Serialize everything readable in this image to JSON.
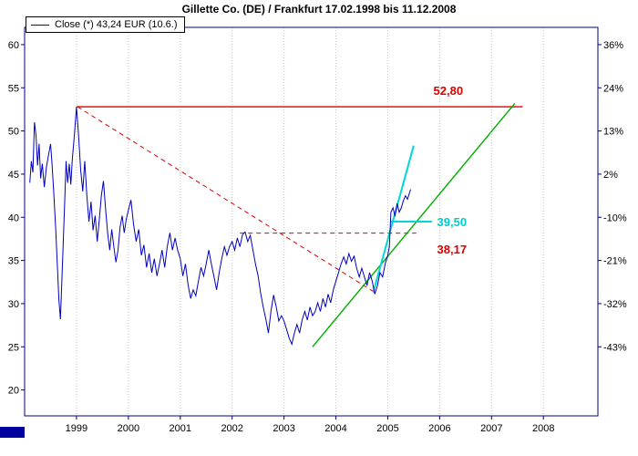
{
  "window": {
    "title": "Gillette Co. (DE) / Frankfurt 17.02.1998 bis 11.12.2008"
  },
  "legend": {
    "label": "Close (*) 43,24 EUR (10.6.)",
    "line_color": "#0000bf"
  },
  "chart_data": {
    "type": "line",
    "title": "Gillette Co. (DE) / Frankfurt 17.02.1998 bis 11.12.2008",
    "colors": {
      "frame": "#000080",
      "grid": "#c4c4c4",
      "price": "#0000bf",
      "red": "#dd0000",
      "green": "#00b000",
      "cyan": "#00d8d8"
    },
    "x_axis": {
      "range": [
        1998.0,
        2009.05
      ],
      "ticks": [
        {
          "label": "1999",
          "value": 1999
        },
        {
          "label": "2000",
          "value": 2000
        },
        {
          "label": "2001",
          "value": 2001
        },
        {
          "label": "2002",
          "value": 2002
        },
        {
          "label": "2003",
          "value": 2003
        },
        {
          "label": "2004",
          "value": 2004
        },
        {
          "label": "2005",
          "value": 2005
        },
        {
          "label": "2006",
          "value": 2006
        },
        {
          "label": "2007",
          "value": 2007
        },
        {
          "label": "2008",
          "value": 2008
        }
      ]
    },
    "y_axis_left": {
      "unit": "EUR",
      "range": [
        17,
        62
      ],
      "ticks": [
        {
          "label": "60",
          "value": 60
        },
        {
          "label": "55",
          "value": 55
        },
        {
          "label": "50",
          "value": 50
        },
        {
          "label": "45",
          "value": 45
        },
        {
          "label": "40",
          "value": 40
        },
        {
          "label": "35",
          "value": 35
        },
        {
          "label": "30",
          "value": 30
        },
        {
          "label": "25",
          "value": 25
        },
        {
          "label": "20",
          "value": 20
        }
      ]
    },
    "y_axis_right": {
      "unit": "%",
      "ticks": [
        {
          "label": "36%",
          "value": 60
        },
        {
          "label": "24%",
          "value": 55
        },
        {
          "label": "13%",
          "value": 50
        },
        {
          "label": "2%",
          "value": 45
        },
        {
          "label": "-10%",
          "value": 40
        },
        {
          "label": "-21%",
          "value": 35
        },
        {
          "label": "-32%",
          "value": 30
        },
        {
          "label": "-43%",
          "value": 25
        }
      ]
    },
    "series": [
      {
        "name": "Close",
        "color": "#0000bf",
        "points": [
          [
            1998.1,
            44.0
          ],
          [
            1998.13,
            46.5
          ],
          [
            1998.16,
            45.2
          ],
          [
            1998.19,
            51.0
          ],
          [
            1998.22,
            49.5
          ],
          [
            1998.25,
            46.0
          ],
          [
            1998.28,
            48.5
          ],
          [
            1998.31,
            44.5
          ],
          [
            1998.34,
            46.2
          ],
          [
            1998.38,
            43.5
          ],
          [
            1998.42,
            45.8
          ],
          [
            1998.46,
            47.2
          ],
          [
            1998.5,
            48.5
          ],
          [
            1998.53,
            46.0
          ],
          [
            1998.56,
            43.0
          ],
          [
            1998.6,
            38.5
          ],
          [
            1998.63,
            34.5
          ],
          [
            1998.66,
            30.5
          ],
          [
            1998.69,
            28.2
          ],
          [
            1998.72,
            33.0
          ],
          [
            1998.75,
            38.0
          ],
          [
            1998.78,
            43.0
          ],
          [
            1998.8,
            46.5
          ],
          [
            1998.83,
            44.0
          ],
          [
            1998.86,
            46.2
          ],
          [
            1998.89,
            43.8
          ],
          [
            1998.92,
            46.8
          ],
          [
            1998.96,
            49.5
          ],
          [
            1999.0,
            52.8
          ],
          [
            1999.04,
            49.5
          ],
          [
            1999.08,
            45.5
          ],
          [
            1999.12,
            43.0
          ],
          [
            1999.16,
            46.5
          ],
          [
            1999.2,
            42.5
          ],
          [
            1999.24,
            39.5
          ],
          [
            1999.28,
            41.8
          ],
          [
            1999.32,
            38.5
          ],
          [
            1999.36,
            40.2
          ],
          [
            1999.4,
            37.2
          ],
          [
            1999.44,
            39.8
          ],
          [
            1999.48,
            42.5
          ],
          [
            1999.52,
            44.2
          ],
          [
            1999.56,
            41.0
          ],
          [
            1999.6,
            38.2
          ],
          [
            1999.64,
            36.2
          ],
          [
            1999.68,
            38.6
          ],
          [
            1999.72,
            36.6
          ],
          [
            1999.76,
            34.8
          ],
          [
            1999.8,
            36.2
          ],
          [
            1999.84,
            38.8
          ],
          [
            1999.88,
            40.2
          ],
          [
            1999.92,
            38.2
          ],
          [
            1999.96,
            39.8
          ],
          [
            2000.0,
            40.8
          ],
          [
            2000.05,
            42.0
          ],
          [
            2000.1,
            39.2
          ],
          [
            2000.15,
            37.2
          ],
          [
            2000.2,
            38.6
          ],
          [
            2000.25,
            35.6
          ],
          [
            2000.3,
            36.8
          ],
          [
            2000.35,
            34.2
          ],
          [
            2000.4,
            35.8
          ],
          [
            2000.45,
            33.6
          ],
          [
            2000.5,
            35.2
          ],
          [
            2000.55,
            33.2
          ],
          [
            2000.6,
            34.6
          ],
          [
            2000.65,
            36.2
          ],
          [
            2000.7,
            34.2
          ],
          [
            2000.75,
            36.6
          ],
          [
            2000.8,
            38.2
          ],
          [
            2000.85,
            36.2
          ],
          [
            2000.9,
            37.6
          ],
          [
            2000.95,
            36.2
          ],
          [
            2001.0,
            35.2
          ],
          [
            2001.05,
            33.2
          ],
          [
            2001.1,
            34.6
          ],
          [
            2001.15,
            32.2
          ],
          [
            2001.2,
            30.6
          ],
          [
            2001.25,
            31.6
          ],
          [
            2001.3,
            30.9
          ],
          [
            2001.35,
            32.6
          ],
          [
            2001.4,
            34.2
          ],
          [
            2001.45,
            33.2
          ],
          [
            2001.5,
            34.6
          ],
          [
            2001.55,
            36.2
          ],
          [
            2001.6,
            34.6
          ],
          [
            2001.65,
            33.1
          ],
          [
            2001.7,
            31.6
          ],
          [
            2001.75,
            33.6
          ],
          [
            2001.8,
            35.2
          ],
          [
            2001.85,
            36.6
          ],
          [
            2001.9,
            35.6
          ],
          [
            2001.95,
            36.6
          ],
          [
            2002.0,
            37.2
          ],
          [
            2002.05,
            36.2
          ],
          [
            2002.1,
            37.6
          ],
          [
            2002.15,
            36.6
          ],
          [
            2002.2,
            38.0
          ],
          [
            2002.25,
            38.3
          ],
          [
            2002.3,
            37.2
          ],
          [
            2002.35,
            37.9
          ],
          [
            2002.4,
            36.2
          ],
          [
            2002.45,
            34.6
          ],
          [
            2002.5,
            33.2
          ],
          [
            2002.55,
            31.2
          ],
          [
            2002.6,
            29.6
          ],
          [
            2002.65,
            28.2
          ],
          [
            2002.7,
            26.6
          ],
          [
            2002.75,
            29.2
          ],
          [
            2002.8,
            31.0
          ],
          [
            2002.85,
            29.6
          ],
          [
            2002.9,
            28.0
          ],
          [
            2002.95,
            28.6
          ],
          [
            2003.0,
            28.0
          ],
          [
            2003.05,
            27.0
          ],
          [
            2003.1,
            26.0
          ],
          [
            2003.15,
            25.3
          ],
          [
            2003.2,
            26.6
          ],
          [
            2003.25,
            27.6
          ],
          [
            2003.3,
            26.6
          ],
          [
            2003.35,
            28.1
          ],
          [
            2003.4,
            29.1
          ],
          [
            2003.45,
            28.1
          ],
          [
            2003.5,
            29.6
          ],
          [
            2003.55,
            28.6
          ],
          [
            2003.6,
            29.1
          ],
          [
            2003.65,
            30.1
          ],
          [
            2003.7,
            29.1
          ],
          [
            2003.75,
            30.6
          ],
          [
            2003.8,
            29.6
          ],
          [
            2003.85,
            31.1
          ],
          [
            2003.9,
            30.1
          ],
          [
            2003.95,
            31.6
          ],
          [
            2004.0,
            32.6
          ],
          [
            2004.05,
            33.6
          ],
          [
            2004.1,
            34.6
          ],
          [
            2004.15,
            35.4
          ],
          [
            2004.2,
            34.6
          ],
          [
            2004.25,
            35.8
          ],
          [
            2004.3,
            34.9
          ],
          [
            2004.35,
            35.5
          ],
          [
            2004.4,
            34.1
          ],
          [
            2004.45,
            33.1
          ],
          [
            2004.5,
            34.1
          ],
          [
            2004.55,
            33.1
          ],
          [
            2004.6,
            32.1
          ],
          [
            2004.65,
            33.6
          ],
          [
            2004.7,
            32.6
          ],
          [
            2004.75,
            31.1
          ],
          [
            2004.8,
            32.1
          ],
          [
            2004.85,
            33.6
          ],
          [
            2004.9,
            33.1
          ],
          [
            2004.95,
            34.6
          ],
          [
            2005.0,
            35.6
          ],
          [
            2005.03,
            36.6
          ],
          [
            2005.06,
            40.6
          ],
          [
            2005.1,
            41.1
          ],
          [
            2005.14,
            40.1
          ],
          [
            2005.18,
            41.6
          ],
          [
            2005.22,
            40.6
          ],
          [
            2005.26,
            41.1
          ],
          [
            2005.3,
            41.9
          ],
          [
            2005.34,
            42.5
          ],
          [
            2005.38,
            42.1
          ],
          [
            2005.44,
            43.24
          ]
        ]
      }
    ],
    "overlays": [
      {
        "name": "resistance-line-52-80",
        "color": "#dd0000",
        "dash": null,
        "width": 1.4,
        "points": [
          [
            1999.0,
            52.8
          ],
          [
            2007.6,
            52.8
          ]
        ]
      },
      {
        "name": "downtrend-dashed-line",
        "color": "#dd0000",
        "dash": "5 4",
        "width": 1,
        "points": [
          [
            1999.02,
            52.8
          ],
          [
            2004.78,
            31.2
          ]
        ]
      },
      {
        "name": "support-dashed-line-38-17",
        "color": "#dd0000",
        "dash": "5 4",
        "width": 1,
        "points": [
          [
            2002.15,
            38.17
          ],
          [
            2005.55,
            38.17
          ]
        ]
      },
      {
        "name": "uptrend-green-line",
        "color": "#00b000",
        "dash": null,
        "width": 1.4,
        "points": [
          [
            2003.55,
            25.0
          ],
          [
            2007.45,
            53.2
          ]
        ]
      },
      {
        "name": "breakout-cyan-line",
        "color": "#00d8d8",
        "dash": null,
        "width": 2,
        "points": [
          [
            2004.72,
            31.3
          ],
          [
            2005.5,
            48.3
          ]
        ]
      },
      {
        "name": "level-cyan-line-39-50",
        "color": "#00d8d8",
        "dash": null,
        "width": 2,
        "points": [
          [
            2005.05,
            39.5
          ],
          [
            2005.85,
            39.5
          ]
        ]
      }
    ],
    "annotations": [
      {
        "text": "52,80",
        "color": "#dd0000",
        "x": 2005.88,
        "y": 54.6
      },
      {
        "text": "39,50",
        "color": "#00cccc",
        "x": 2005.95,
        "y": 39.4
      },
      {
        "text": "38,17",
        "color": "#dd0000",
        "x": 2005.95,
        "y": 36.2
      }
    ]
  }
}
